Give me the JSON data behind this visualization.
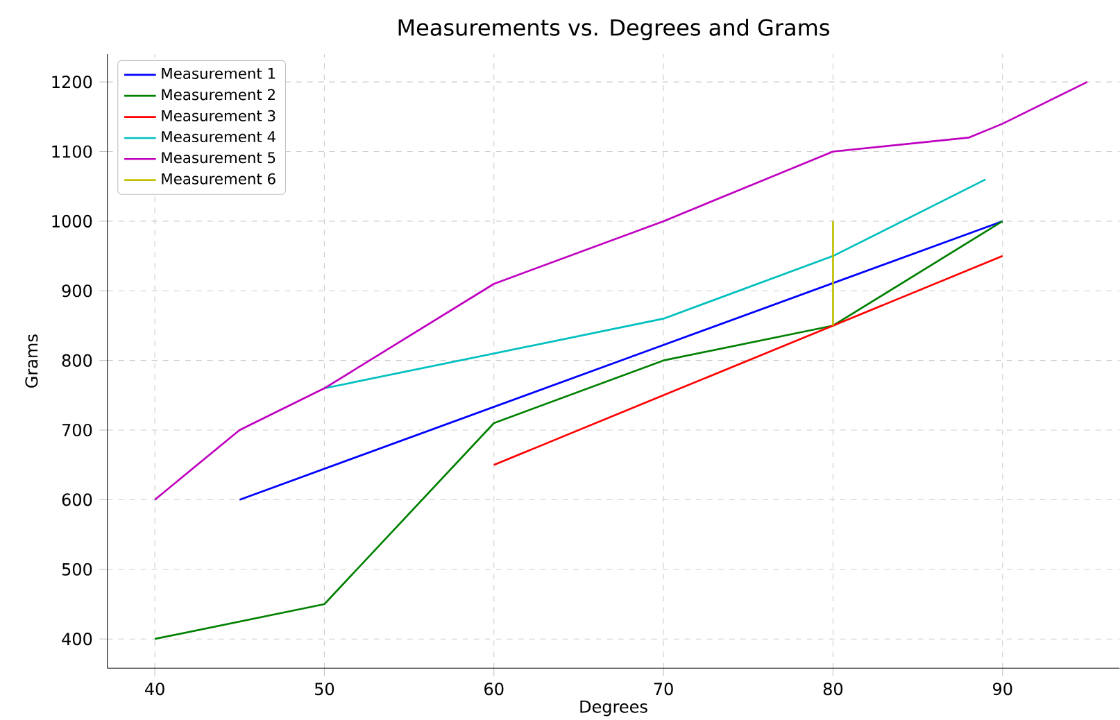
{
  "chart_data": {
    "type": "line",
    "title": "Measurements vs. Degrees and Grams",
    "xlabel": "Degrees",
    "ylabel": "Grams",
    "xlim": [
      37.2,
      96.9
    ],
    "ylim": [
      358,
      1240
    ],
    "xticks": [
      40,
      50,
      60,
      70,
      80,
      90
    ],
    "yticks": [
      400,
      500,
      600,
      700,
      800,
      900,
      1000,
      1100,
      1200
    ],
    "grid": true,
    "legend": "top left",
    "marker": "none",
    "line_style": "solid",
    "series": [
      {
        "name": "Measurement 1",
        "color": "#0000ff",
        "x": [
          45,
          90
        ],
        "values": [
          600,
          1000
        ]
      },
      {
        "name": "Measurement 2",
        "color": "#008000",
        "x": [
          40,
          50,
          60,
          70,
          80,
          90
        ],
        "values": [
          400,
          450,
          710,
          800,
          850,
          1000
        ]
      },
      {
        "name": "Measurement 3",
        "color": "#ff0000",
        "x": [
          60,
          70,
          80,
          90
        ],
        "values": [
          650,
          750,
          850,
          950
        ]
      },
      {
        "name": "Measurement 4",
        "color": "#00bfbf",
        "x": [
          50,
          70,
          80,
          89
        ],
        "values": [
          760,
          860,
          950,
          1060
        ]
      },
      {
        "name": "Measurement 5",
        "color": "#bf00bf",
        "x": [
          40,
          45,
          50,
          60,
          70,
          80,
          88,
          90,
          95
        ],
        "values": [
          600,
          700,
          760,
          910,
          1000,
          1100,
          1120,
          1140,
          1200
        ]
      },
      {
        "name": "Measurement 6",
        "color": "#bfbf00",
        "x": [
          80,
          80
        ],
        "values": [
          850,
          1000
        ]
      }
    ]
  }
}
